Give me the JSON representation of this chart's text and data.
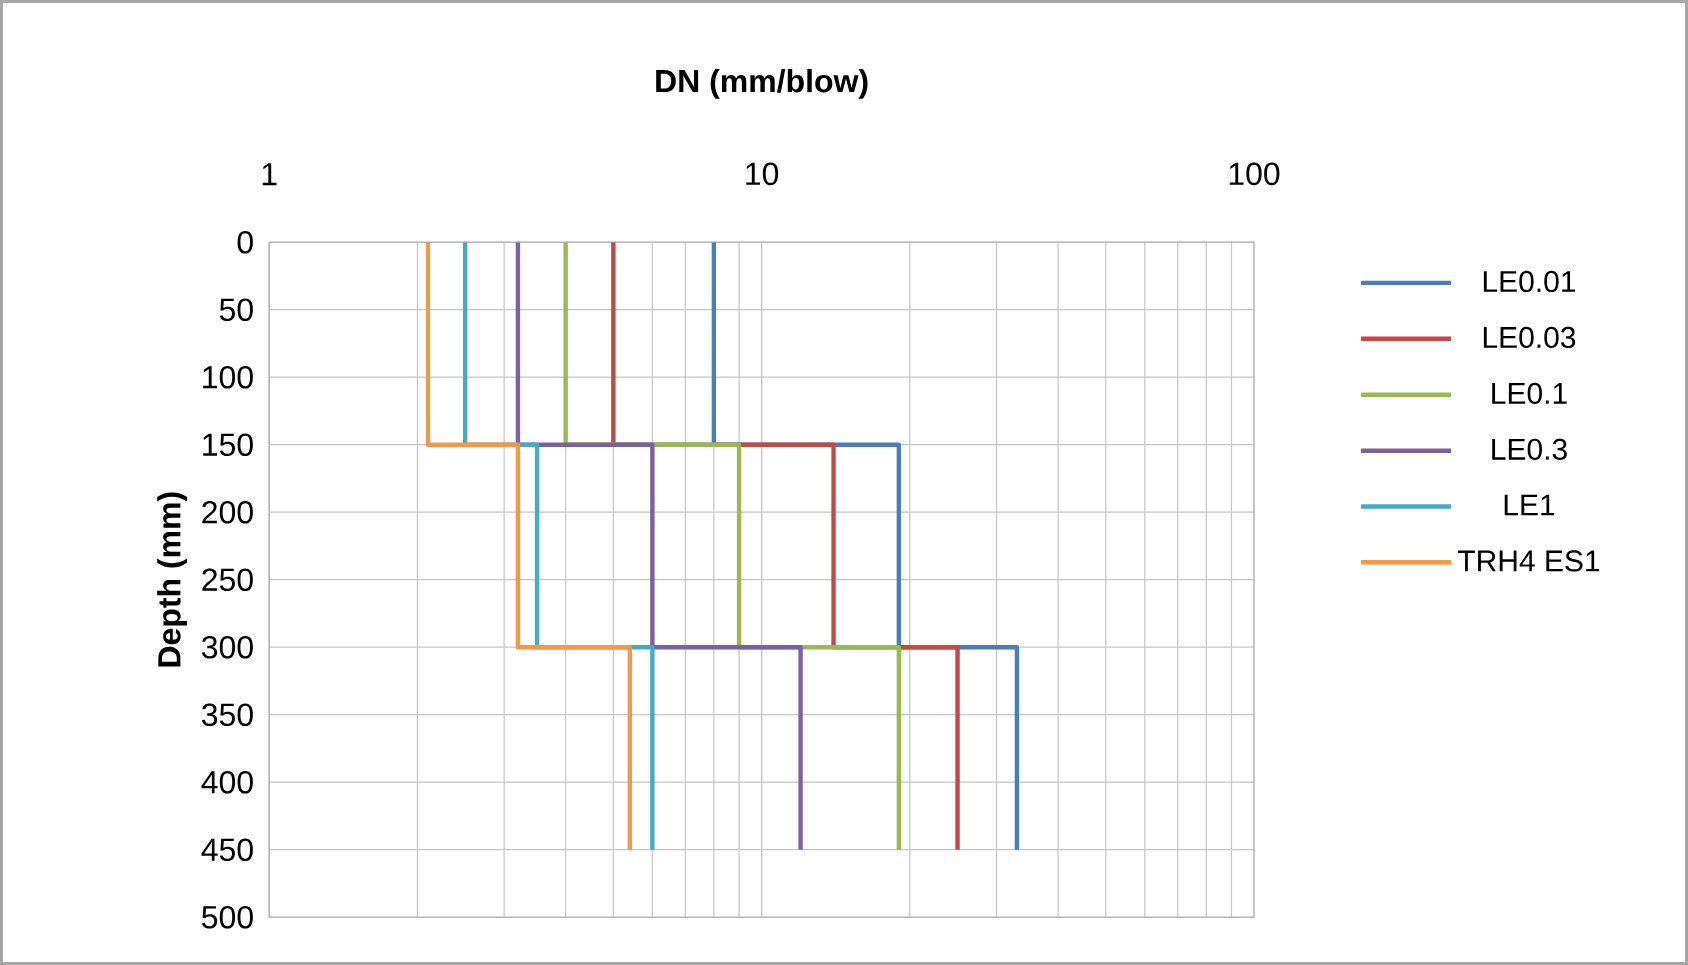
{
  "chart_data": {
    "type": "line",
    "xlabel": "DN (mm/blow)",
    "ylabel": "Depth (mm)",
    "log": "x",
    "xlim": [
      1,
      100
    ],
    "xticks": [
      1,
      10,
      100
    ],
    "ylim": [
      500,
      0
    ],
    "yticks": [
      0,
      50,
      100,
      150,
      200,
      250,
      300,
      350,
      400,
      450,
      500
    ],
    "grid": true,
    "legend": "right",
    "marker": "none",
    "line_style": "solid",
    "series": [
      {
        "name": "LE0.01",
        "color": "#4a7ebb",
        "x": [
          8,
          8,
          19,
          19,
          33,
          33
        ],
        "values": [
          0,
          150,
          150,
          300,
          300,
          450
        ]
      },
      {
        "name": "LE0.03",
        "color": "#be4b48",
        "x": [
          5,
          5,
          14,
          14,
          25,
          25
        ],
        "values": [
          0,
          150,
          150,
          300,
          300,
          450
        ]
      },
      {
        "name": "LE0.1",
        "color": "#98b954",
        "x": [
          4,
          4,
          9,
          9,
          19,
          19
        ],
        "values": [
          0,
          150,
          150,
          300,
          300,
          450
        ]
      },
      {
        "name": "LE0.3",
        "color": "#7d60a0",
        "x": [
          3.2,
          3.2,
          6,
          6,
          12,
          12
        ],
        "values": [
          0,
          150,
          150,
          300,
          300,
          450
        ]
      },
      {
        "name": "LE1",
        "color": "#46aac5",
        "x": [
          2.5,
          2.5,
          3.5,
          3.5,
          6,
          6
        ],
        "values": [
          0,
          150,
          150,
          300,
          300,
          450
        ]
      },
      {
        "name": "TRH4 ES1",
        "color": "#f79646",
        "x": [
          2.1,
          2.1,
          3.2,
          3.2,
          5.4,
          5.4
        ],
        "values": [
          0,
          150,
          150,
          300,
          300,
          450
        ]
      }
    ]
  }
}
